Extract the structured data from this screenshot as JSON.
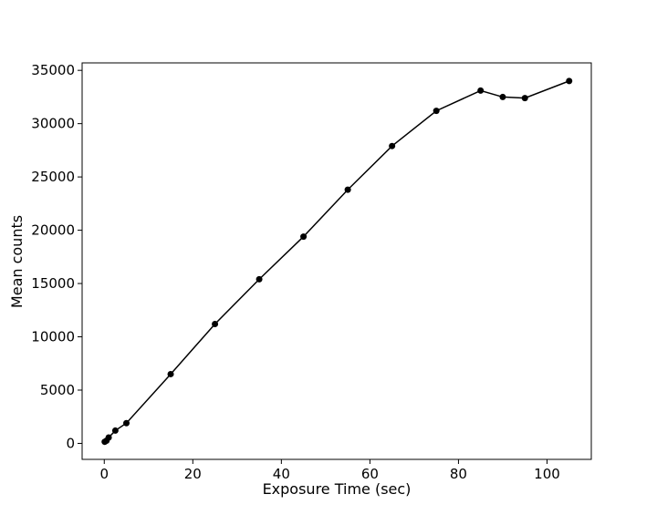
{
  "chart_data": {
    "type": "line",
    "title": "",
    "xlabel": "Exposure Time (sec)",
    "ylabel": "Mean counts",
    "xlim": [
      -5,
      110
    ],
    "ylim": [
      -1500,
      35700
    ],
    "xticks": [
      0,
      20,
      40,
      60,
      80,
      100
    ],
    "yticks": [
      0,
      5000,
      10000,
      15000,
      20000,
      25000,
      30000,
      35000
    ],
    "grid": false,
    "legend": "none",
    "series": [
      {
        "color": "#000000",
        "marker": "circle",
        "x": [
          0.1,
          0.5,
          1,
          2.5,
          5,
          15,
          25,
          35,
          45,
          55,
          65,
          75,
          85,
          90,
          95,
          105
        ],
        "y": [
          150,
          250,
          550,
          1200,
          1900,
          6500,
          11200,
          15400,
          19400,
          23800,
          27900,
          31200,
          33100,
          32500,
          32400,
          34000
        ]
      }
    ]
  }
}
